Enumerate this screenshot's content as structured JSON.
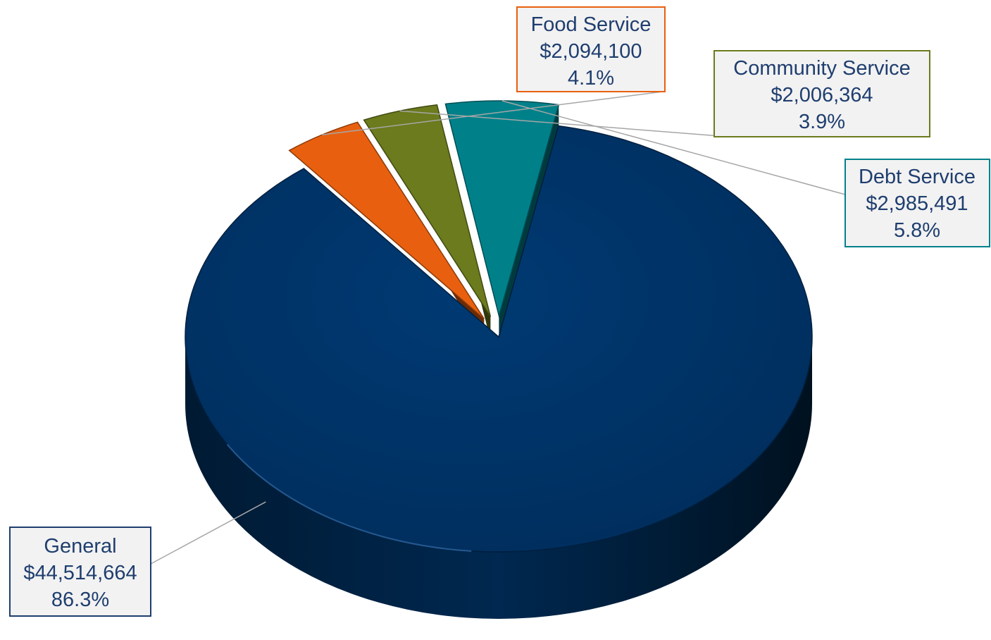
{
  "chart_data": {
    "type": "pie",
    "title": "",
    "slices": [
      {
        "label": "General",
        "value": 44514664,
        "value_text": "$44,514,664",
        "percent": 86.3,
        "percent_text": "86.3%",
        "color": "#003366",
        "border": "#1f3e6f"
      },
      {
        "label": "Food Service",
        "value": 2094100,
        "value_text": "$2,094,100",
        "percent": 4.1,
        "percent_text": "4.1%",
        "color": "#e8600f",
        "border": "#e8600f"
      },
      {
        "label": "Community Service",
        "value": 2006364,
        "value_text": "$2,006,364",
        "percent": 3.9,
        "percent_text": "3.9%",
        "color": "#6b7b1d",
        "border": "#6b7b1d"
      },
      {
        "label": "Debt Service",
        "value": 2985491,
        "value_text": "$2,985,491",
        "percent": 5.8,
        "percent_text": "5.8%",
        "color": "#00818a",
        "border": "#00818a"
      }
    ],
    "legend": "none",
    "data_labels": "callout-boxes"
  }
}
